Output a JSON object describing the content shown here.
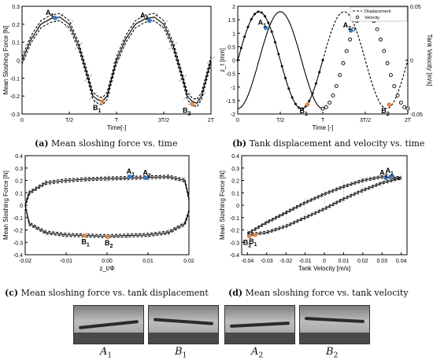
{
  "chart_data": [
    {
      "id": "a",
      "type": "line",
      "xlabel": "Time[-]",
      "ylabel": "Mean Sloshing Force [N]",
      "x_ticks": [
        "0",
        "T/2",
        "T",
        "3T/2",
        "2T"
      ],
      "y_ticks": [
        0.3,
        0.2,
        0.1,
        0,
        -0.1,
        -0.2,
        -0.3
      ],
      "ylim": [
        -0.3,
        0.3
      ],
      "xlim": [
        0,
        2
      ],
      "series": [
        {
          "style": "solid",
          "x": [
            0,
            0.1,
            0.2,
            0.3,
            0.4,
            0.5,
            0.6,
            0.7,
            0.75,
            0.8,
            0.85,
            0.9,
            1.0,
            1.1,
            1.2,
            1.3,
            1.4,
            1.5,
            1.6,
            1.7,
            1.75,
            1.8,
            1.85,
            1.9,
            2.0
          ],
          "y": [
            0,
            0.12,
            0.2,
            0.23,
            0.24,
            0.2,
            0.08,
            -0.1,
            -0.2,
            -0.22,
            -0.23,
            -0.2,
            0,
            0.12,
            0.2,
            0.23,
            0.24,
            0.2,
            0.08,
            -0.1,
            -0.2,
            -0.23,
            -0.24,
            -0.2,
            0
          ]
        },
        {
          "style": "dashed",
          "x": [
            0,
            0.1,
            0.2,
            0.3,
            0.4,
            0.5,
            0.6,
            0.7,
            0.75,
            0.8,
            0.85,
            0.9,
            1.0,
            1.1,
            1.2,
            1.3,
            1.4,
            1.5,
            1.6,
            1.7,
            1.75,
            1.8,
            1.85,
            1.9,
            2.0
          ],
          "y": [
            0.02,
            0.14,
            0.22,
            0.25,
            0.26,
            0.22,
            0.1,
            -0.08,
            -0.18,
            -0.2,
            -0.21,
            -0.18,
            0.02,
            0.14,
            0.22,
            0.25,
            0.26,
            0.22,
            0.1,
            -0.08,
            -0.18,
            -0.21,
            -0.22,
            -0.18,
            0.02
          ]
        },
        {
          "style": "dashed",
          "x": [
            0,
            0.1,
            0.2,
            0.3,
            0.4,
            0.5,
            0.6,
            0.7,
            0.75,
            0.8,
            0.85,
            0.9,
            1.0,
            1.1,
            1.2,
            1.3,
            1.4,
            1.5,
            1.6,
            1.7,
            1.75,
            1.8,
            1.85,
            1.9,
            2.0
          ],
          "y": [
            -0.02,
            0.1,
            0.18,
            0.21,
            0.22,
            0.18,
            0.06,
            -0.12,
            -0.22,
            -0.24,
            -0.25,
            -0.22,
            -0.02,
            0.1,
            0.18,
            0.21,
            0.22,
            0.18,
            0.06,
            -0.12,
            -0.22,
            -0.25,
            -0.26,
            -0.22,
            -0.02
          ]
        }
      ],
      "markers": [
        {
          "label": "A",
          "sub": "1",
          "x": 0.35,
          "y": 0.235,
          "color": "#3a78c9"
        },
        {
          "label": "B",
          "sub": "1",
          "x": 0.85,
          "y": -0.23,
          "color": "#e08a4a"
        },
        {
          "label": "A",
          "sub": "2",
          "x": 1.35,
          "y": 0.22,
          "color": "#3a78c9"
        },
        {
          "label": "B",
          "sub": "2",
          "x": 1.8,
          "y": -0.245,
          "color": "#e08a4a"
        }
      ],
      "caption_letter": "(a)",
      "caption_text": "Mean sloshing force vs. time"
    },
    {
      "id": "b",
      "type": "line",
      "xlabel": "Time [-]",
      "ylabel": "z_t [mm]",
      "ylabel_right": "Tank Velocity [m/s]",
      "x_ticks": [
        "0",
        "T/2",
        "T",
        "3T/2",
        "2T"
      ],
      "y_ticks": [
        2,
        1.5,
        1,
        0.5,
        0,
        -0.5,
        -1,
        -1.5,
        -2
      ],
      "y_ticks_right": [
        0.05,
        0,
        -0.05
      ],
      "ylim": [
        -2,
        2
      ],
      "xlim": [
        0,
        2
      ],
      "legend": [
        "Displacement",
        "Velocity"
      ],
      "legend_position": "top-right",
      "displacement": {
        "x": [
          0,
          0.125,
          0.25,
          0.375,
          0.5,
          0.625,
          0.75,
          0.875,
          1.0,
          1.125,
          1.25,
          1.375,
          1.5,
          1.625,
          1.75,
          1.875,
          2.0
        ],
        "y": [
          0,
          1.27,
          1.8,
          1.27,
          0,
          -1.27,
          -1.8,
          -1.27,
          0,
          1.27,
          1.8,
          1.27,
          0,
          -1.27,
          -1.8,
          -1.27,
          0
        ]
      },
      "velocity": {
        "x": [
          0,
          0.125,
          0.25,
          0.375,
          0.5,
          0.625,
          0.75,
          0.875,
          1.0,
          1.125,
          1.25,
          1.375,
          1.5,
          1.625,
          1.75,
          1.875,
          2.0
        ],
        "y": [
          -1.8,
          -1.27,
          0,
          1.27,
          1.8,
          1.27,
          0,
          -1.27,
          -1.8,
          -1.27,
          0,
          1.27,
          1.8,
          1.27,
          0,
          -1.27,
          -1.8
        ]
      },
      "markers": [
        {
          "label": "A",
          "sub": "1",
          "x": 0.33,
          "y": 1.2,
          "color": "#3a78c9"
        },
        {
          "label": "B",
          "sub": "1",
          "x": 0.82,
          "y": -1.65,
          "color": "#e08a4a"
        },
        {
          "label": "A",
          "sub": "2",
          "x": 1.33,
          "y": 1.1,
          "color": "#3a78c9"
        },
        {
          "label": "B",
          "sub": "2",
          "x": 1.78,
          "y": -1.65,
          "color": "#e08a4a"
        }
      ],
      "caption_letter": "(b)",
      "caption_text": "Tank displacement and velocity vs. time"
    },
    {
      "id": "c",
      "type": "line",
      "xlabel": "z_t/Φ",
      "ylabel": "Mean Sloshing Force [N]",
      "x_ticks": [
        -0.02,
        -0.01,
        0,
        0.01,
        0.02
      ],
      "x_tick_labels": [
        "-0.02",
        "-0.01",
        "0.00",
        "0.01",
        "0.02"
      ],
      "y_ticks": [
        0.4,
        0.3,
        0.2,
        0.1,
        0,
        -0.1,
        -0.2,
        -0.3,
        -0.4
      ],
      "xlim": [
        -0.02,
        0.02
      ],
      "ylim": [
        -0.4,
        0.4
      ],
      "loop_x": [
        -0.02,
        -0.019,
        -0.015,
        -0.01,
        -0.005,
        0,
        0.005,
        0.01,
        0.015,
        0.019,
        0.02,
        0.02,
        0.019,
        0.015,
        0.01,
        0.005,
        0,
        -0.005,
        -0.01,
        -0.015,
        -0.019,
        -0.02
      ],
      "loop_y": [
        0,
        0.1,
        0.18,
        0.2,
        0.21,
        0.215,
        0.22,
        0.225,
        0.23,
        0.2,
        0.05,
        -0.05,
        -0.15,
        -0.22,
        -0.24,
        -0.245,
        -0.25,
        -0.245,
        -0.24,
        -0.22,
        -0.15,
        0
      ],
      "markers": [
        {
          "label": "A",
          "sub": "1",
          "x": 0.0055,
          "y": 0.23,
          "color": "#3a78c9"
        },
        {
          "label": "A",
          "sub": "2",
          "x": 0.0095,
          "y": 0.22,
          "color": "#3a78c9"
        },
        {
          "label": "B",
          "sub": "1",
          "x": -0.0055,
          "y": -0.245,
          "color": "#e08a4a"
        },
        {
          "label": "B",
          "sub": "2",
          "x": 0.0002,
          "y": -0.255,
          "color": "#e08a4a"
        }
      ],
      "caption_letter": "(c)",
      "caption_text": "Mean sloshing force vs. tank displacement"
    },
    {
      "id": "d",
      "type": "line",
      "xlabel": "Tank Velocity [m/s]",
      "ylabel": "Mean Sloshing Force [N]",
      "x_ticks": [
        -0.04,
        -0.03,
        -0.02,
        -0.01,
        0,
        0.01,
        0.02,
        0.03,
        0.04
      ],
      "x_tick_labels": [
        "-0.04",
        "-0.03",
        "-0.02",
        "-0.01",
        "0",
        "0.01",
        "0.02",
        "0.03",
        "0.04"
      ],
      "y_ticks": [
        0.4,
        0.3,
        0.2,
        0.1,
        0,
        -0.1,
        -0.2,
        -0.3,
        -0.4
      ],
      "xlim": [
        -0.043,
        0.043
      ],
      "ylim": [
        -0.4,
        0.4
      ],
      "upper_x": [
        -0.04,
        -0.03,
        -0.02,
        -0.01,
        0,
        0.01,
        0.02,
        0.03,
        0.04
      ],
      "upper_y": [
        -0.23,
        -0.14,
        -0.06,
        0.02,
        0.09,
        0.15,
        0.2,
        0.23,
        0.22
      ],
      "lower_x": [
        -0.04,
        -0.03,
        -0.02,
        -0.01,
        0,
        0.01,
        0.02,
        0.03,
        0.04
      ],
      "lower_y": [
        -0.24,
        -0.22,
        -0.17,
        -0.1,
        -0.03,
        0.05,
        0.12,
        0.18,
        0.22
      ],
      "markers": [
        {
          "label": "A",
          "sub": "2",
          "x": 0.032,
          "y": 0.22,
          "color": "#3a78c9"
        },
        {
          "label": "A",
          "sub": "1",
          "x": 0.035,
          "y": 0.235,
          "color": "#3a78c9"
        },
        {
          "label": "B",
          "sub": "2",
          "x": -0.039,
          "y": -0.25,
          "color": "#e08a4a"
        },
        {
          "label": "B",
          "sub": "1",
          "x": -0.036,
          "y": -0.24,
          "color": "#e08a4a"
        }
      ],
      "caption_letter": "(d)",
      "caption_text": "Mean sloshing force vs. tank velocity"
    }
  ],
  "photos": [
    {
      "label": "A",
      "sub": "1"
    },
    {
      "label": "B",
      "sub": "1"
    },
    {
      "label": "A",
      "sub": "2"
    },
    {
      "label": "B",
      "sub": "2"
    }
  ]
}
